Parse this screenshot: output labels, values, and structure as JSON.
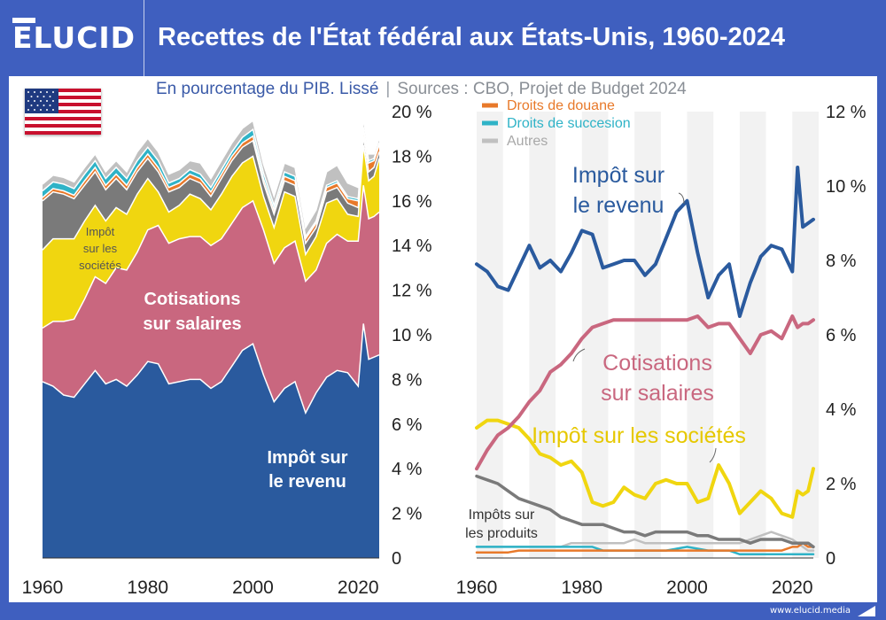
{
  "brand": {
    "logo_text": "ELUCID",
    "url": "www.elucid.media"
  },
  "title": "Recettes de l'État fédéral aux États-Unis, 1960-2024",
  "subtitle": {
    "unit": "En pourcentage du PIB. Lissé",
    "separator": "|",
    "sources": "Sources : CBO, Projet de Budget 2024"
  },
  "colors": {
    "income": "#2a5a9e",
    "payroll": "#c9677f",
    "corporate": "#f0d610",
    "excise": "#7a7a7a",
    "customs": "#e8792a",
    "estate": "#2fb3c7",
    "other": "#c0c0c0",
    "header": "#3f5fbf"
  },
  "chart_data": [
    {
      "type": "area",
      "stacked": true,
      "x": [
        1960,
        1962,
        1964,
        1966,
        1968,
        1970,
        1972,
        1974,
        1976,
        1978,
        1980,
        1982,
        1984,
        1986,
        1988,
        1990,
        1992,
        1994,
        1996,
        1998,
        2000,
        2002,
        2004,
        2006,
        2008,
        2010,
        2012,
        2014,
        2016,
        2018,
        2020,
        2021,
        2022,
        2023,
        2024
      ],
      "series": [
        {
          "name": "Impôt sur le revenu",
          "values": [
            7.9,
            7.7,
            7.3,
            7.2,
            7.8,
            8.4,
            7.8,
            8.0,
            7.7,
            8.2,
            8.8,
            8.7,
            7.8,
            7.9,
            8.0,
            8.0,
            7.6,
            7.9,
            8.6,
            9.3,
            9.6,
            8.2,
            7.0,
            7.6,
            7.9,
            6.5,
            7.4,
            8.1,
            8.4,
            8.3,
            7.7,
            10.5,
            8.9,
            9.0,
            9.1
          ]
        },
        {
          "name": "Cotisations sur salaires",
          "values": [
            2.4,
            2.9,
            3.3,
            3.5,
            3.8,
            4.2,
            4.5,
            5.0,
            5.2,
            5.5,
            5.9,
            6.2,
            6.3,
            6.4,
            6.4,
            6.4,
            6.4,
            6.4,
            6.4,
            6.4,
            6.4,
            6.5,
            6.2,
            6.3,
            6.3,
            5.9,
            5.5,
            6.0,
            6.1,
            5.9,
            6.5,
            6.2,
            6.3,
            6.3,
            6.4
          ]
        },
        {
          "name": "Impôt sur les sociétés",
          "values": [
            3.5,
            3.7,
            3.7,
            3.6,
            3.5,
            3.2,
            2.8,
            2.7,
            2.5,
            2.6,
            2.3,
            1.5,
            1.4,
            1.5,
            1.9,
            1.7,
            1.6,
            2.0,
            2.1,
            2.0,
            2.0,
            1.5,
            1.6,
            2.5,
            2.0,
            1.2,
            1.5,
            1.8,
            1.6,
            1.2,
            1.1,
            1.8,
            1.7,
            1.8,
            2.4
          ]
        },
        {
          "name": "Impôts sur les produits",
          "values": [
            2.2,
            2.1,
            2.0,
            1.8,
            1.6,
            1.5,
            1.4,
            1.3,
            1.1,
            1.0,
            0.9,
            0.9,
            0.9,
            0.8,
            0.7,
            0.7,
            0.6,
            0.7,
            0.7,
            0.7,
            0.7,
            0.6,
            0.6,
            0.5,
            0.5,
            0.5,
            0.4,
            0.5,
            0.5,
            0.5,
            0.4,
            0.4,
            0.4,
            0.4,
            0.3
          ]
        },
        {
          "name": "Droits de douane",
          "values": [
            0.15,
            0.15,
            0.15,
            0.15,
            0.2,
            0.2,
            0.2,
            0.2,
            0.2,
            0.2,
            0.2,
            0.2,
            0.2,
            0.2,
            0.2,
            0.2,
            0.2,
            0.2,
            0.2,
            0.2,
            0.2,
            0.2,
            0.2,
            0.2,
            0.2,
            0.2,
            0.2,
            0.2,
            0.2,
            0.2,
            0.3,
            0.3,
            0.4,
            0.3,
            0.3
          ]
        },
        {
          "name": "Droits de succesion",
          "values": [
            0.3,
            0.3,
            0.3,
            0.3,
            0.3,
            0.3,
            0.3,
            0.3,
            0.3,
            0.3,
            0.3,
            0.3,
            0.2,
            0.2,
            0.2,
            0.2,
            0.2,
            0.2,
            0.2,
            0.25,
            0.3,
            0.25,
            0.2,
            0.2,
            0.2,
            0.1,
            0.1,
            0.1,
            0.1,
            0.1,
            0.1,
            0.1,
            0.1,
            0.1,
            0.1
          ]
        },
        {
          "name": "Autres",
          "values": [
            0.3,
            0.3,
            0.3,
            0.3,
            0.3,
            0.3,
            0.3,
            0.3,
            0.3,
            0.4,
            0.4,
            0.4,
            0.4,
            0.4,
            0.4,
            0.5,
            0.4,
            0.4,
            0.4,
            0.4,
            0.4,
            0.4,
            0.4,
            0.4,
            0.4,
            0.4,
            0.5,
            0.6,
            0.7,
            0.6,
            0.5,
            0.4,
            0.3,
            0.2,
            0.2
          ]
        }
      ],
      "ylim": [
        0,
        20
      ],
      "yticks": [
        "0",
        "2 %",
        "4 %",
        "6 %",
        "8 %",
        "10 %",
        "12 %",
        "14 %",
        "16 %",
        "18 %",
        "20 %"
      ],
      "xticks": [
        "1960",
        "1980",
        "2000",
        "2020"
      ],
      "annotations": [
        "Impôt sur le revenu",
        "Cotisations sur salaires",
        "Impôt sur les sociétés"
      ]
    },
    {
      "type": "line",
      "x": [
        1960,
        1962,
        1964,
        1966,
        1968,
        1970,
        1972,
        1974,
        1976,
        1978,
        1980,
        1982,
        1984,
        1986,
        1988,
        1990,
        1992,
        1994,
        1996,
        1998,
        2000,
        2002,
        2004,
        2006,
        2008,
        2010,
        2012,
        2014,
        2016,
        2018,
        2020,
        2021,
        2022,
        2023,
        2024
      ],
      "series": [
        {
          "name": "Impôt sur le revenu",
          "values": [
            7.9,
            7.7,
            7.3,
            7.2,
            7.8,
            8.4,
            7.8,
            8.0,
            7.7,
            8.2,
            8.8,
            8.7,
            7.8,
            7.9,
            8.0,
            8.0,
            7.6,
            7.9,
            8.6,
            9.3,
            9.6,
            8.2,
            7.0,
            7.6,
            7.9,
            6.5,
            7.4,
            8.1,
            8.4,
            8.3,
            7.7,
            10.5,
            8.9,
            9.0,
            9.1
          ]
        },
        {
          "name": "Cotisations sur salaires",
          "values": [
            2.4,
            2.9,
            3.3,
            3.5,
            3.8,
            4.2,
            4.5,
            5.0,
            5.2,
            5.5,
            5.9,
            6.2,
            6.3,
            6.4,
            6.4,
            6.4,
            6.4,
            6.4,
            6.4,
            6.4,
            6.4,
            6.5,
            6.2,
            6.3,
            6.3,
            5.9,
            5.5,
            6.0,
            6.1,
            5.9,
            6.5,
            6.2,
            6.3,
            6.3,
            6.4
          ]
        },
        {
          "name": "Impôt sur les sociétés",
          "values": [
            3.5,
            3.7,
            3.7,
            3.6,
            3.5,
            3.2,
            2.8,
            2.7,
            2.5,
            2.6,
            2.3,
            1.5,
            1.4,
            1.5,
            1.9,
            1.7,
            1.6,
            2.0,
            2.1,
            2.0,
            2.0,
            1.5,
            1.6,
            2.5,
            2.0,
            1.2,
            1.5,
            1.8,
            1.6,
            1.2,
            1.1,
            1.8,
            1.7,
            1.8,
            2.4
          ]
        },
        {
          "name": "Impôts sur les produits",
          "values": [
            2.2,
            2.1,
            2.0,
            1.8,
            1.6,
            1.5,
            1.4,
            1.3,
            1.1,
            1.0,
            0.9,
            0.9,
            0.9,
            0.8,
            0.7,
            0.7,
            0.6,
            0.7,
            0.7,
            0.7,
            0.7,
            0.6,
            0.6,
            0.5,
            0.5,
            0.5,
            0.4,
            0.5,
            0.5,
            0.5,
            0.4,
            0.4,
            0.4,
            0.4,
            0.3
          ]
        },
        {
          "name": "Droits de douane",
          "values": [
            0.15,
            0.15,
            0.15,
            0.15,
            0.2,
            0.2,
            0.2,
            0.2,
            0.2,
            0.2,
            0.2,
            0.2,
            0.2,
            0.2,
            0.2,
            0.2,
            0.2,
            0.2,
            0.2,
            0.2,
            0.2,
            0.2,
            0.2,
            0.2,
            0.2,
            0.2,
            0.2,
            0.2,
            0.2,
            0.2,
            0.3,
            0.3,
            0.4,
            0.3,
            0.3
          ]
        },
        {
          "name": "Droits de succesion",
          "values": [
            0.3,
            0.3,
            0.3,
            0.3,
            0.3,
            0.3,
            0.3,
            0.3,
            0.3,
            0.3,
            0.3,
            0.3,
            0.2,
            0.2,
            0.2,
            0.2,
            0.2,
            0.2,
            0.2,
            0.25,
            0.3,
            0.25,
            0.2,
            0.2,
            0.2,
            0.1,
            0.1,
            0.1,
            0.1,
            0.1,
            0.1,
            0.1,
            0.1,
            0.1,
            0.1
          ]
        },
        {
          "name": "Autres",
          "values": [
            0.3,
            0.3,
            0.3,
            0.3,
            0.3,
            0.3,
            0.3,
            0.3,
            0.3,
            0.4,
            0.4,
            0.4,
            0.4,
            0.4,
            0.4,
            0.5,
            0.4,
            0.4,
            0.4,
            0.4,
            0.4,
            0.4,
            0.4,
            0.4,
            0.4,
            0.4,
            0.5,
            0.6,
            0.7,
            0.6,
            0.5,
            0.4,
            0.3,
            0.2,
            0.2
          ]
        }
      ],
      "ylim": [
        0,
        12
      ],
      "yticks": [
        "0",
        "2 %",
        "4 %",
        "6 %",
        "8 %",
        "10 %",
        "12 %"
      ],
      "xticks": [
        "1960",
        "1980",
        "2000",
        "2020"
      ],
      "legend": [
        "Droits de douane",
        "Droits de succesion",
        "Autres"
      ],
      "legend_position": "top-left",
      "annotations": [
        "Impôt sur le revenu",
        "Cotisations sur salaires",
        "Impôt sur les sociétés",
        "Impôts sur les produits"
      ]
    }
  ]
}
